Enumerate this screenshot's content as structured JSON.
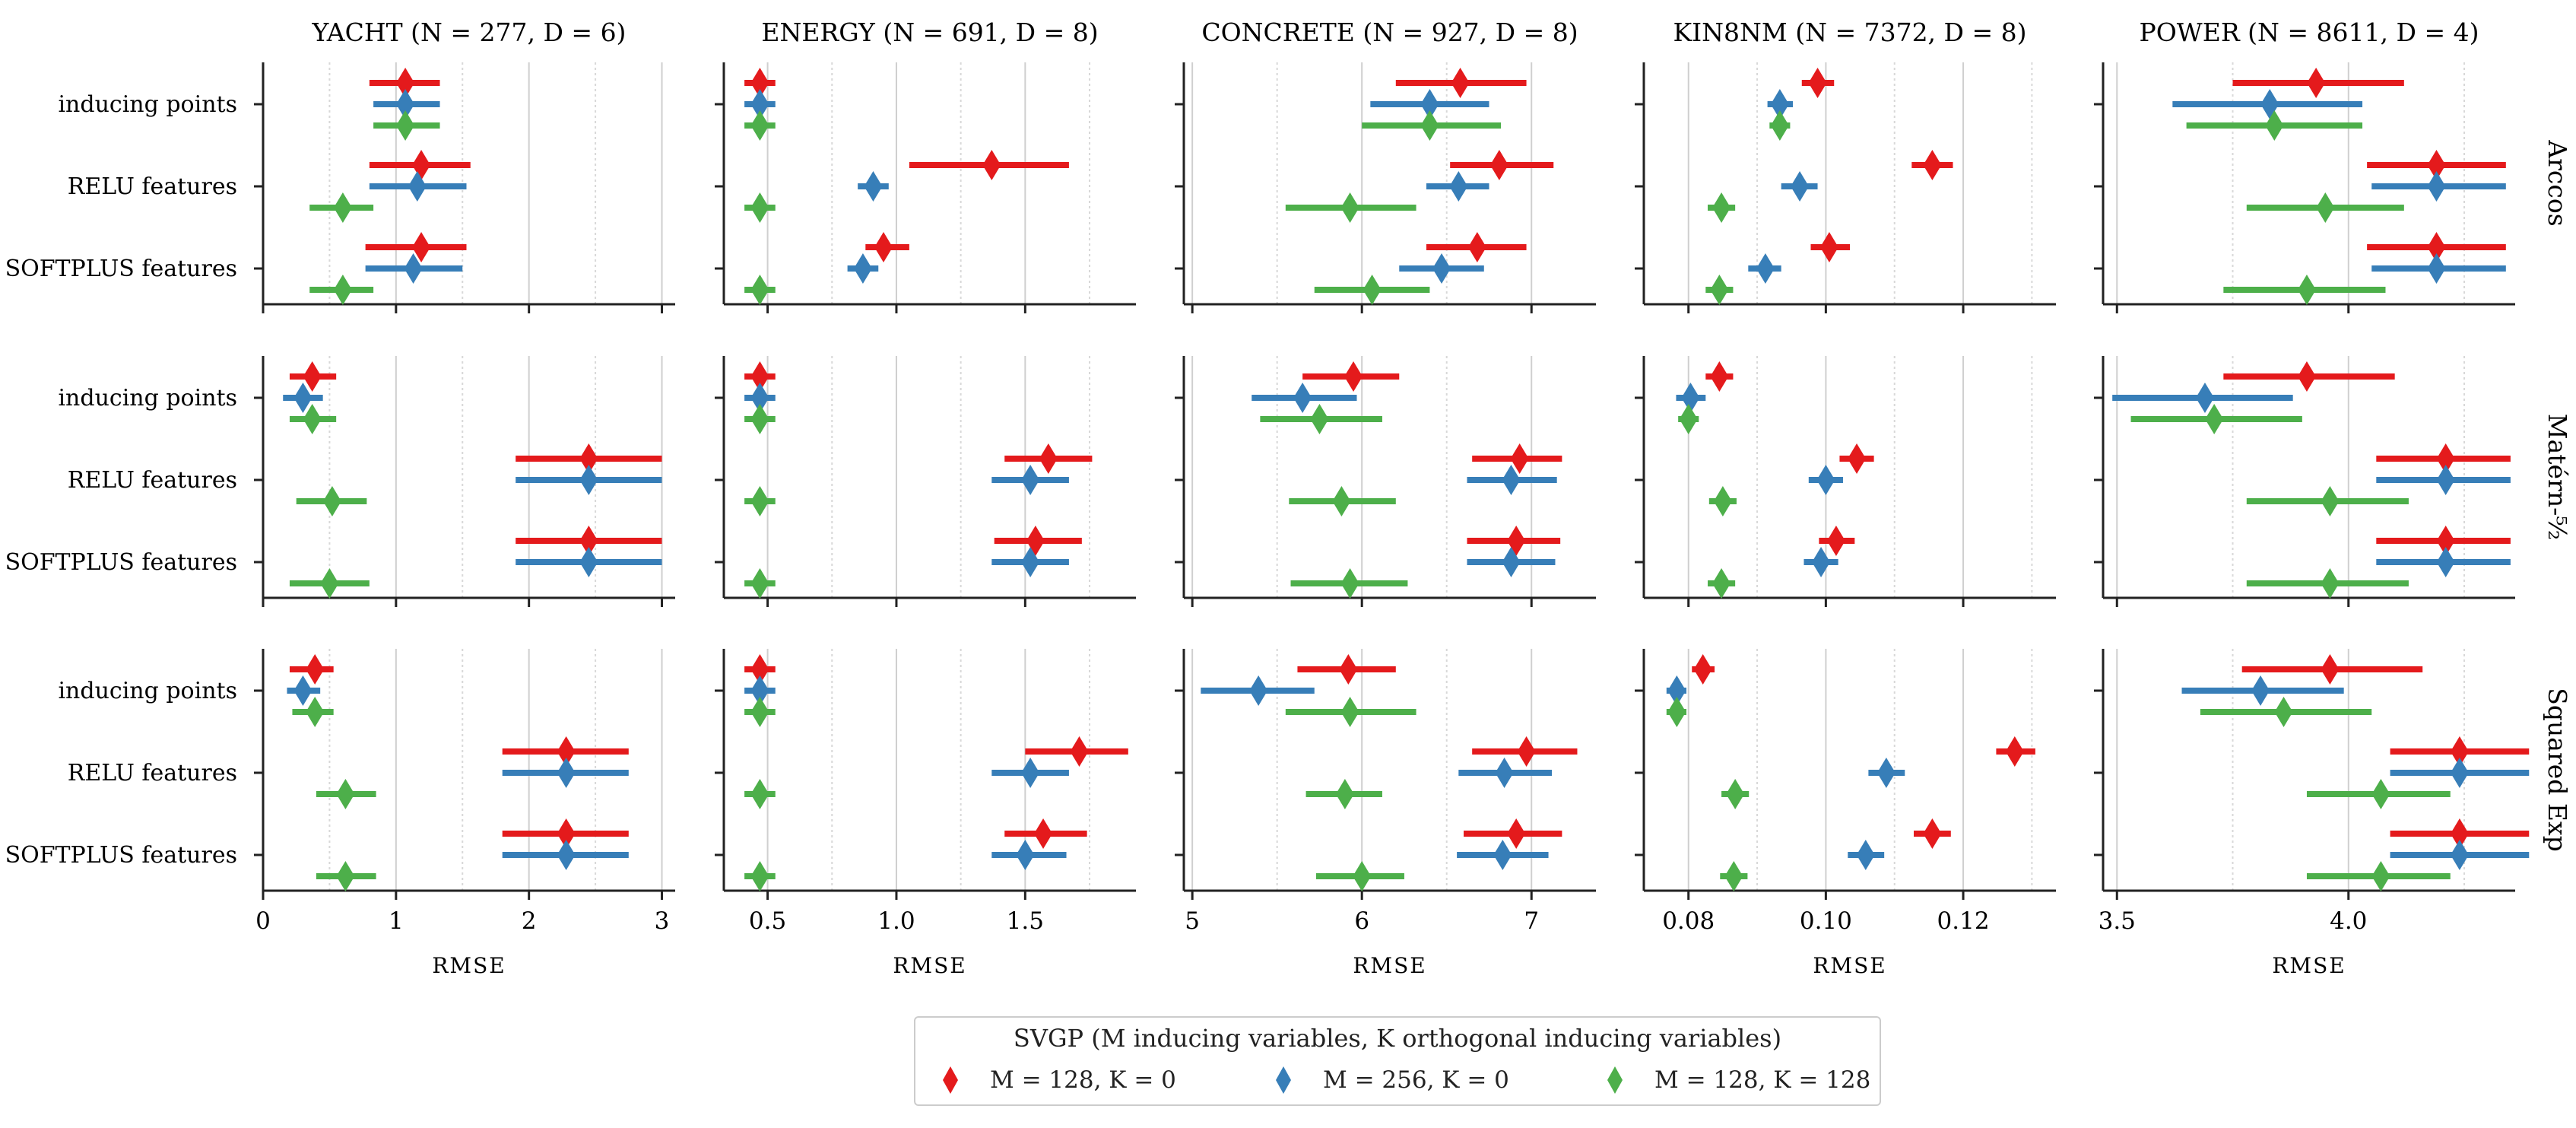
{
  "chart_data": {
    "type": "forest",
    "xlabel": "RMSE",
    "row_labels": [
      "inducing points",
      "RELU features",
      "SOFTPLUS features"
    ],
    "kernels": [
      "Arccos",
      "Matérn-⁵⁄₂",
      "Squared Exp"
    ],
    "legend": {
      "title": "SVGP (M inducing variables, K orthogonal inducing variables)",
      "entries": [
        "M = 128, K = 0",
        "M = 256, K = 0",
        "M = 128, K = 128"
      ]
    },
    "colors": [
      "#e41a1c",
      "#377eb8",
      "#4daf4a"
    ],
    "datasets": [
      {
        "title": "YACHT (N = 277, D = 6)",
        "xlim": [
          0,
          3.1
        ],
        "ticks": [
          0,
          1,
          2,
          3
        ],
        "tick_labels": [
          "0",
          "1",
          "2",
          "3"
        ],
        "minor": [
          0.5,
          1.5,
          2.5
        ],
        "values": [
          [
            [
              [
                1.07,
                0.8,
                1.33
              ],
              [
                1.07,
                0.83,
                1.33
              ],
              [
                1.07,
                0.83,
                1.33
              ]
            ],
            [
              [
                1.19,
                0.8,
                1.56
              ],
              [
                1.16,
                0.8,
                1.53
              ],
              [
                0.6,
                0.35,
                0.83
              ]
            ],
            [
              [
                1.19,
                0.77,
                1.53
              ],
              [
                1.13,
                0.77,
                1.5
              ],
              [
                0.6,
                0.35,
                0.83
              ]
            ]
          ],
          [
            [
              [
                0.37,
                0.2,
                0.55
              ],
              [
                0.3,
                0.15,
                0.45
              ],
              [
                0.37,
                0.2,
                0.55
              ]
            ],
            [
              [
                2.45,
                1.9,
                3.0
              ],
              [
                2.45,
                1.9,
                3.0
              ],
              [
                0.52,
                0.25,
                0.78
              ]
            ],
            [
              [
                2.45,
                1.9,
                3.0
              ],
              [
                2.45,
                1.9,
                3.0
              ],
              [
                0.5,
                0.2,
                0.8
              ]
            ]
          ],
          [
            [
              [
                0.39,
                0.2,
                0.53
              ],
              [
                0.3,
                0.18,
                0.43
              ],
              [
                0.39,
                0.22,
                0.53
              ]
            ],
            [
              [
                2.28,
                1.8,
                2.75
              ],
              [
                2.28,
                1.8,
                2.75
              ],
              [
                0.62,
                0.4,
                0.85
              ]
            ],
            [
              [
                2.28,
                1.8,
                2.75
              ],
              [
                2.28,
                1.8,
                2.75
              ],
              [
                0.62,
                0.4,
                0.85
              ]
            ]
          ]
        ]
      },
      {
        "title": "ENERGY (N = 691, D = 8)",
        "xlim": [
          0.33,
          1.93
        ],
        "ticks": [
          0.5,
          1.0,
          1.5
        ],
        "tick_labels": [
          "0.5",
          "1.0",
          "1.5"
        ],
        "minor": [
          0.75,
          1.25,
          1.75
        ],
        "values": [
          [
            [
              [
                0.47,
                0.41,
                0.53
              ],
              [
                0.47,
                0.41,
                0.53
              ],
              [
                0.47,
                0.41,
                0.53
              ]
            ],
            [
              [
                1.37,
                1.05,
                1.67
              ],
              [
                0.91,
                0.85,
                0.97
              ],
              [
                0.47,
                0.41,
                0.53
              ]
            ],
            [
              [
                0.95,
                0.88,
                1.05
              ],
              [
                0.87,
                0.81,
                0.93
              ],
              [
                0.47,
                0.41,
                0.53
              ]
            ]
          ],
          [
            [
              [
                0.47,
                0.41,
                0.53
              ],
              [
                0.47,
                0.41,
                0.53
              ],
              [
                0.47,
                0.41,
                0.53
              ]
            ],
            [
              [
                1.59,
                1.42,
                1.76
              ],
              [
                1.52,
                1.37,
                1.67
              ],
              [
                0.47,
                0.41,
                0.53
              ]
            ],
            [
              [
                1.54,
                1.38,
                1.72
              ],
              [
                1.52,
                1.37,
                1.67
              ],
              [
                0.47,
                0.41,
                0.53
              ]
            ]
          ],
          [
            [
              [
                0.47,
                0.41,
                0.53
              ],
              [
                0.47,
                0.41,
                0.53
              ],
              [
                0.47,
                0.41,
                0.53
              ]
            ],
            [
              [
                1.71,
                1.5,
                1.9
              ],
              [
                1.52,
                1.37,
                1.67
              ],
              [
                0.47,
                0.41,
                0.53
              ]
            ],
            [
              [
                1.57,
                1.42,
                1.74
              ],
              [
                1.5,
                1.37,
                1.66
              ],
              [
                0.47,
                0.41,
                0.53
              ]
            ]
          ]
        ]
      },
      {
        "title": "CONCRETE (N = 927, D = 8)",
        "xlim": [
          4.95,
          7.38
        ],
        "ticks": [
          5,
          6,
          7
        ],
        "tick_labels": [
          "5",
          "6",
          "7"
        ],
        "minor": [
          5.5,
          6.5
        ],
        "values": [
          [
            [
              [
                6.58,
                6.2,
                6.97
              ],
              [
                6.4,
                6.05,
                6.75
              ],
              [
                6.4,
                6.0,
                6.82
              ]
            ],
            [
              [
                6.81,
                6.52,
                7.13
              ],
              [
                6.57,
                6.38,
                6.75
              ],
              [
                5.93,
                5.55,
                6.32
              ]
            ],
            [
              [
                6.68,
                6.38,
                6.97
              ],
              [
                6.47,
                6.22,
                6.72
              ],
              [
                6.06,
                5.72,
                6.4
              ]
            ]
          ],
          [
            [
              [
                5.95,
                5.65,
                6.22
              ],
              [
                5.65,
                5.35,
                5.97
              ],
              [
                5.75,
                5.4,
                6.12
              ]
            ],
            [
              [
                6.93,
                6.65,
                7.18
              ],
              [
                6.88,
                6.62,
                7.15
              ],
              [
                5.88,
                5.57,
                6.2
              ]
            ],
            [
              [
                6.91,
                6.62,
                7.17
              ],
              [
                6.88,
                6.62,
                7.14
              ],
              [
                5.93,
                5.58,
                6.27
              ]
            ]
          ],
          [
            [
              [
                5.92,
                5.62,
                6.2
              ],
              [
                5.39,
                5.05,
                5.72
              ],
              [
                5.93,
                5.55,
                6.32
              ]
            ],
            [
              [
                6.97,
                6.65,
                7.27
              ],
              [
                6.84,
                6.57,
                7.12
              ],
              [
                5.9,
                5.67,
                6.12
              ]
            ],
            [
              [
                6.91,
                6.6,
                7.18
              ],
              [
                6.83,
                6.56,
                7.1
              ],
              [
                6.0,
                5.73,
                6.25
              ]
            ]
          ]
        ]
      },
      {
        "title": "KIN8NM (N = 7372, D = 8)",
        "xlim": [
          0.0735,
          0.1335
        ],
        "ticks": [
          0.08,
          0.1,
          0.12
        ],
        "tick_labels": [
          "0.08",
          "0.10",
          "0.12"
        ],
        "minor": [
          0.09,
          0.11,
          0.13
        ],
        "values": [
          [
            [
              [
                0.0988,
                0.0965,
                0.1012
              ],
              [
                0.0933,
                0.0915,
                0.0952
              ],
              [
                0.0933,
                0.0918,
                0.0948
              ]
            ],
            [
              [
                0.1155,
                0.1125,
                0.1185
              ],
              [
                0.0962,
                0.0935,
                0.0988
              ],
              [
                0.0848,
                0.0828,
                0.0868
              ]
            ],
            [
              [
                0.1005,
                0.0978,
                0.1035
              ],
              [
                0.0912,
                0.0887,
                0.0935
              ],
              [
                0.0845,
                0.0825,
                0.0865
              ]
            ]
          ],
          [
            [
              [
                0.0845,
                0.0825,
                0.0865
              ],
              [
                0.0803,
                0.0782,
                0.0825
              ],
              [
                0.08,
                0.0785,
                0.0815
              ]
            ],
            [
              [
                0.1045,
                0.102,
                0.107
              ],
              [
                0.1,
                0.0975,
                0.1025
              ],
              [
                0.085,
                0.083,
                0.087
              ]
            ],
            [
              [
                0.1015,
                0.099,
                0.1042
              ],
              [
                0.0993,
                0.0968,
                0.1018
              ],
              [
                0.0848,
                0.0828,
                0.0868
              ]
            ]
          ],
          [
            [
              [
                0.0821,
                0.0805,
                0.0838
              ],
              [
                0.0783,
                0.0768,
                0.0797
              ],
              [
                0.0783,
                0.0768,
                0.0797
              ]
            ],
            [
              [
                0.1275,
                0.1248,
                0.1305
              ],
              [
                0.1088,
                0.1062,
                0.1115
              ],
              [
                0.0868,
                0.0848,
                0.0888
              ]
            ],
            [
              [
                0.1155,
                0.1128,
                0.1182
              ],
              [
                0.1058,
                0.1032,
                0.1085
              ],
              [
                0.0866,
                0.0846,
                0.0886
              ]
            ]
          ]
        ]
      },
      {
        "title": "POWER (N = 8611, D = 4)",
        "xlim": [
          3.47,
          4.36
        ],
        "ticks": [
          3.5,
          4.0
        ],
        "tick_labels": [
          "3.5",
          "4.0"
        ],
        "minor": [
          3.75,
          4.25
        ],
        "values": [
          [
            [
              [
                3.93,
                3.75,
                4.12
              ],
              [
                3.83,
                3.62,
                4.03
              ],
              [
                3.84,
                3.65,
                4.03
              ]
            ],
            [
              [
                4.19,
                4.04,
                4.34
              ],
              [
                4.19,
                4.05,
                4.34
              ],
              [
                3.95,
                3.78,
                4.12
              ]
            ],
            [
              [
                4.19,
                4.04,
                4.34
              ],
              [
                4.19,
                4.05,
                4.34
              ],
              [
                3.91,
                3.73,
                4.08
              ]
            ]
          ],
          [
            [
              [
                3.91,
                3.73,
                4.1
              ],
              [
                3.69,
                3.49,
                3.88
              ],
              [
                3.71,
                3.53,
                3.9
              ]
            ],
            [
              [
                4.21,
                4.06,
                4.35
              ],
              [
                4.21,
                4.06,
                4.35
              ],
              [
                3.96,
                3.78,
                4.13
              ]
            ],
            [
              [
                4.21,
                4.06,
                4.35
              ],
              [
                4.21,
                4.06,
                4.35
              ],
              [
                3.96,
                3.78,
                4.13
              ]
            ]
          ],
          [
            [
              [
                3.96,
                3.77,
                4.16
              ],
              [
                3.81,
                3.64,
                3.99
              ],
              [
                3.86,
                3.68,
                4.05
              ]
            ],
            [
              [
                4.24,
                4.09,
                4.39
              ],
              [
                4.24,
                4.09,
                4.39
              ],
              [
                4.07,
                3.91,
                4.22
              ]
            ],
            [
              [
                4.24,
                4.09,
                4.39
              ],
              [
                4.24,
                4.09,
                4.39
              ],
              [
                4.07,
                3.91,
                4.22
              ]
            ]
          ]
        ]
      }
    ]
  }
}
